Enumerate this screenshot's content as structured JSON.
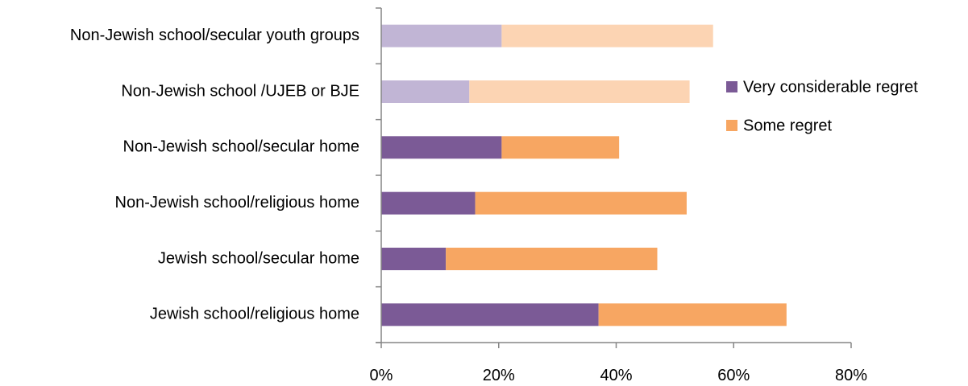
{
  "chart_data": {
    "type": "bar",
    "orientation": "horizontal",
    "stacked": true,
    "categories": [
      "Jewish school/religious home",
      "Jewish school/secular home",
      "Non-Jewish school/religious home",
      "Non-Jewish school/secular home",
      "Non-Jewish school /UJEB or BJE",
      "Non-Jewish school/secular youth groups"
    ],
    "series": [
      {
        "name": "Very considerable regret",
        "values": [
          37,
          11,
          16,
          20.5,
          15,
          20.5
        ],
        "color": "#7B5A96",
        "faded_color": "#C1B5D5"
      },
      {
        "name": "Some regret",
        "values": [
          32,
          36,
          36,
          20,
          37.5,
          36
        ],
        "color": "#F7A662",
        "faded_color": "#FCD4B3"
      }
    ],
    "faded_categories": [
      "Non-Jewish school /UJEB or BJE",
      "Non-Jewish school/secular youth groups"
    ],
    "xlim": [
      0,
      80
    ],
    "xticks": [
      "0%",
      "20%",
      "40%",
      "60%",
      "80%"
    ],
    "xtick_values": [
      0,
      20,
      40,
      60,
      80
    ],
    "title": "",
    "xlabel": "",
    "ylabel": "",
    "grid": false,
    "legend_position": "right"
  }
}
